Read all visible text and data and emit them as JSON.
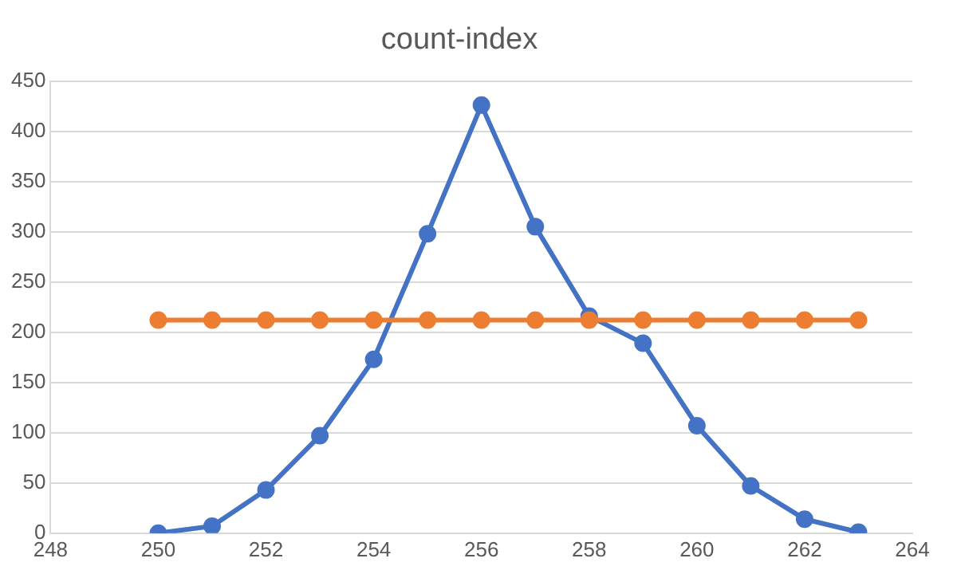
{
  "chart_data": {
    "type": "line",
    "title": "count-index",
    "series": [
      {
        "color": "#4472c4",
        "x": [
          250,
          251,
          252,
          253,
          254,
          255,
          256,
          257,
          258,
          259,
          260,
          261,
          262,
          263
        ],
        "values": [
          0,
          7,
          43,
          97,
          173,
          298,
          426,
          305,
          216,
          189,
          107,
          47,
          14,
          1
        ]
      },
      {
        "color": "#ed7d31",
        "x": [
          250,
          251,
          252,
          253,
          254,
          255,
          256,
          257,
          258,
          259,
          260,
          261,
          262,
          263
        ],
        "values": [
          212,
          212,
          212,
          212,
          212,
          212,
          212,
          212,
          212,
          212,
          212,
          212,
          212,
          212
        ]
      }
    ],
    "xlim": [
      248,
      264
    ],
    "xticks": [
      248,
      250,
      252,
      254,
      256,
      258,
      260,
      262,
      264
    ],
    "ylim": [
      0,
      450
    ],
    "yticks": [
      0,
      50,
      100,
      150,
      200,
      250,
      300,
      350,
      400,
      450
    ],
    "grid": "y",
    "marker": "circle",
    "line_style": "solid",
    "legend": false
  }
}
